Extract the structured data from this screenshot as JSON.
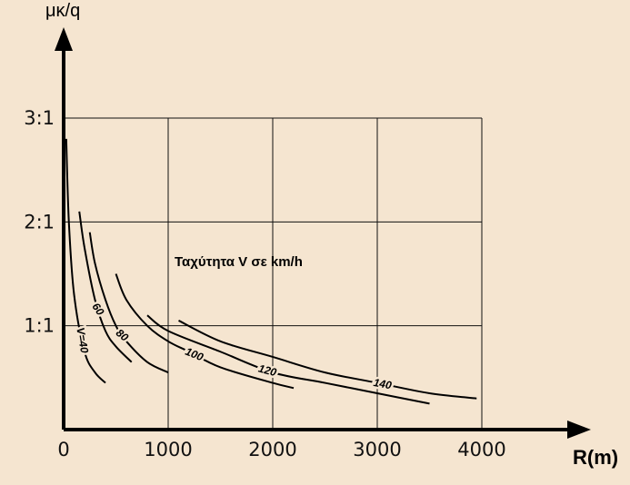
{
  "chart_data": {
    "type": "line",
    "title": "",
    "xlabel": "R(m)",
    "ylabel": "μκ/q",
    "xlim": [
      0,
      4000
    ],
    "ylim": [
      0,
      3
    ],
    "x_ticks": [
      "0",
      "1000",
      "2000",
      "3000",
      "4000"
    ],
    "y_ticks": [
      "1:1",
      "2:1",
      "3:1"
    ],
    "grid": true,
    "annotation": "Ταχύτητα V σε km/h",
    "series": [
      {
        "name": "V=40",
        "x": [
          25,
          50,
          100,
          200,
          300,
          400
        ],
        "y": [
          2.8,
          2.0,
          1.3,
          0.75,
          0.55,
          0.45
        ]
      },
      {
        "name": "60",
        "x": [
          150,
          200,
          300,
          400,
          500,
          650
        ],
        "y": [
          2.1,
          1.75,
          1.25,
          0.95,
          0.8,
          0.65
        ]
      },
      {
        "name": "80",
        "x": [
          250,
          300,
          400,
          500,
          600,
          800,
          1000
        ],
        "y": [
          1.9,
          1.6,
          1.25,
          1.0,
          0.85,
          0.65,
          0.55
        ]
      },
      {
        "name": "100",
        "x": [
          500,
          600,
          800,
          1000,
          1200,
          1500,
          2000,
          2200
        ],
        "y": [
          1.5,
          1.25,
          1.0,
          0.85,
          0.75,
          0.6,
          0.45,
          0.4
        ]
      },
      {
        "name": "120",
        "x": [
          800,
          1000,
          1500,
          2000,
          2500,
          3000,
          3500
        ],
        "y": [
          1.1,
          0.95,
          0.75,
          0.55,
          0.45,
          0.35,
          0.25
        ]
      },
      {
        "name": "140",
        "x": [
          1100,
          1500,
          2000,
          2500,
          3000,
          3500,
          3950
        ],
        "y": [
          1.05,
          0.85,
          0.7,
          0.55,
          0.45,
          0.35,
          0.3
        ]
      }
    ]
  }
}
